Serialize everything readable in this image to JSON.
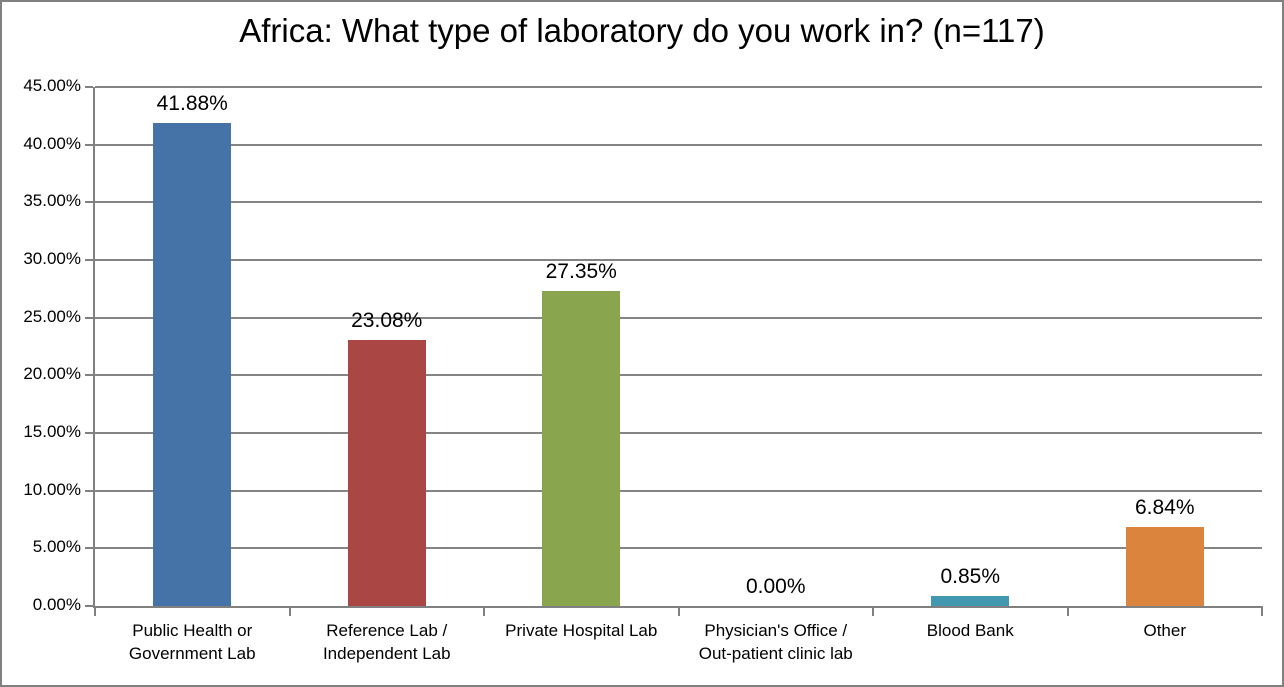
{
  "chart_data": {
    "type": "bar",
    "title": "Africa: What type of laboratory do you work in? (n=117)",
    "categories": [
      "Public Health or\nGovernment Lab",
      "Reference Lab /\nIndependent Lab",
      "Private Hospital Lab",
      "Physician's Office /\nOut-patient clinic lab",
      "Blood Bank",
      "Other"
    ],
    "values": [
      41.88,
      23.08,
      27.35,
      0,
      0.85,
      6.84
    ],
    "value_labels": [
      "41.88%",
      "23.08%",
      "27.35%",
      "0.00%",
      "0.85%",
      "6.84%"
    ],
    "bar_colors": [
      "#4572A7",
      "#AA4643",
      "#89A54E",
      "#71588F",
      "#4198AF",
      "#DB843D"
    ],
    "ylim": [
      0,
      45
    ],
    "ytick_step": 5,
    "ytick_labels": [
      "0.00%",
      "5.00%",
      "10.00%",
      "15.00%",
      "20.00%",
      "25.00%",
      "30.00%",
      "35.00%",
      "40.00%",
      "45.00%"
    ],
    "xlabel": "",
    "ylabel": "",
    "grid": "horizontal",
    "legend": "none",
    "axis_color": "#808080",
    "grid_color": "#848484",
    "frame_border_color": "#808080",
    "background_color": "#FFFFFF",
    "text_color": "#000000"
  }
}
